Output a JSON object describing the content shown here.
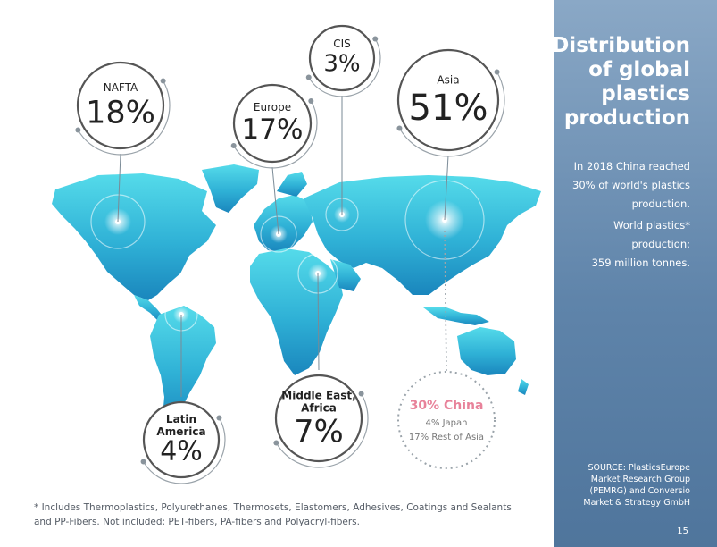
{
  "chart_data": {
    "type": "pie",
    "title": "Distribution of global plastics production",
    "regions": [
      {
        "label": "NAFTA",
        "value": 18,
        "value_text": "18%"
      },
      {
        "label": "Europe",
        "value": 17,
        "value_text": "17%"
      },
      {
        "label": "CIS",
        "value": 3,
        "value_text": "3%"
      },
      {
        "label": "Asia",
        "value": 51,
        "value_text": "51%"
      },
      {
        "label": "Middle East, Africa",
        "value": 7,
        "value_text": "7%"
      },
      {
        "label": "Latin America",
        "value": 4,
        "value_text": "4%"
      }
    ],
    "asia_breakdown": [
      {
        "label": "China",
        "value": 30,
        "text": "30% China"
      },
      {
        "label": "Japan",
        "value": 4,
        "text": "4% Japan"
      },
      {
        "label": "Rest of Asia",
        "value": 17,
        "text": "17% Rest of Asia"
      }
    ]
  },
  "sidebar": {
    "title_lines": [
      "Distribution",
      "of global",
      "plastics",
      "production"
    ],
    "china_note_lines": [
      "In 2018 China reached",
      "30% of world's plastics",
      "production."
    ],
    "production_note_lines": [
      "World plastics*",
      "production:",
      "359 million tonnes."
    ],
    "source_lines": [
      "SOURCE: PlasticsEurope",
      "Market Research Group",
      "(PEMRG) and Conversio",
      "Market & Strategy GmbH"
    ],
    "page_number": "15"
  },
  "footnote_lines": [
    "* Includes Thermoplastics, Polyurethanes, Thermosets, Elastomers, Adhesives, Coatings and Sealants",
    "and PP-Fibers. Not included: PET-fibers, PA-fibers and Polyacryl-fibers."
  ],
  "colors": {
    "map_top": "#4fd6e8",
    "map_bottom": "#1e8fc4",
    "bubble_ring": "#555555",
    "china_pink": "#e8829a",
    "sidebar": "#6f90b4"
  }
}
